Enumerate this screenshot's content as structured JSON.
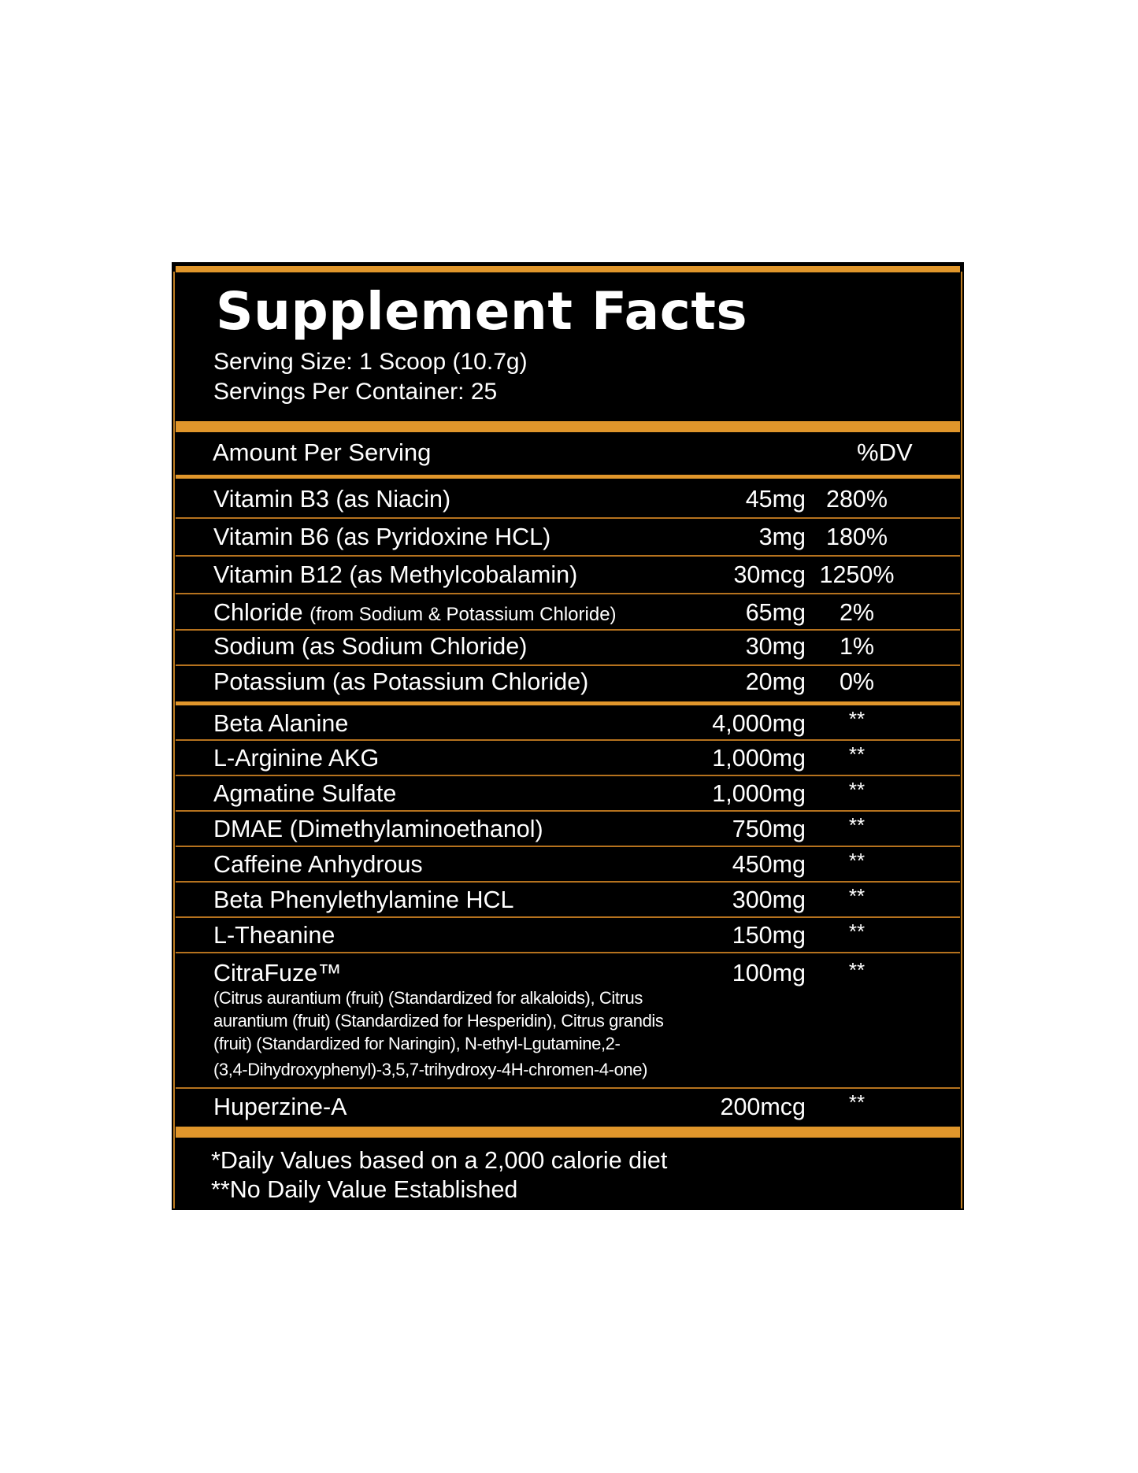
{
  "title": "Supplement Facts",
  "serving_size": "Serving Size: 1 Scoop (10.7g)",
  "servings_per_container": "Servings Per Container: 25",
  "header": {
    "amount_label": "Amount Per Serving",
    "dv_label": "%DV"
  },
  "vitamins": [
    {
      "name": "Vitamin B3 (as Niacin)",
      "amount": "45mg",
      "dv": "280%"
    },
    {
      "name": "Vitamin B6 (as Pyridoxine HCL)",
      "amount": "3mg",
      "dv": "180%"
    },
    {
      "name": "Vitamin B12 (as Methylcobalamin)",
      "amount": "30mcg",
      "dv": "1250%"
    },
    {
      "name": "Chloride",
      "note": "(from Sodium & Potassium Chloride)",
      "amount": "65mg",
      "dv": "2%"
    },
    {
      "name": "Sodium (as Sodium Chloride)",
      "amount": "30mg",
      "dv": "1%"
    },
    {
      "name": "Potassium (as Potassium Chloride)",
      "amount": "20mg",
      "dv": "0%"
    }
  ],
  "ingredients": [
    {
      "name": "Beta Alanine",
      "amount": "4,000mg",
      "dv": "**"
    },
    {
      "name": "L-Arginine AKG",
      "amount": "1,000mg",
      "dv": "**"
    },
    {
      "name": "Agmatine Sulfate",
      "amount": "1,000mg",
      "dv": "**"
    },
    {
      "name": "DMAE (Dimethylaminoethanol)",
      "amount": "750mg",
      "dv": "**"
    },
    {
      "name": "Caffeine Anhydrous",
      "amount": "450mg",
      "dv": "**"
    },
    {
      "name": "Beta Phenylethylamine HCL",
      "amount": "300mg",
      "dv": "**"
    },
    {
      "name": "L-Theanine",
      "amount": "150mg",
      "dv": "**"
    },
    {
      "name": "CitraFuze™",
      "amount": "100mg",
      "dv": "**",
      "description_lines": [
        "(Citrus aurantium (fruit) (Standardized for alkaloids), Citrus",
        "aurantium (fruit) (Standardized for Hesperidin), Citrus grandis",
        "(fruit) (Standardized for Naringin), N-ethyl-Lgutamine,2-",
        "(3,4-Dihydroxyphenyl)-3,5,7-trihydroxy-4H-chromen-4-one)"
      ]
    },
    {
      "name": "Huperzine-A",
      "amount": "200mcg",
      "dv": "**"
    }
  ],
  "footnotes": [
    "*Daily Values based on a 2,000 calorie diet",
    "**No Daily Value Established"
  ],
  "colors": {
    "panel": "#000000",
    "accent": "#e0962b",
    "text": "#ffffff"
  }
}
